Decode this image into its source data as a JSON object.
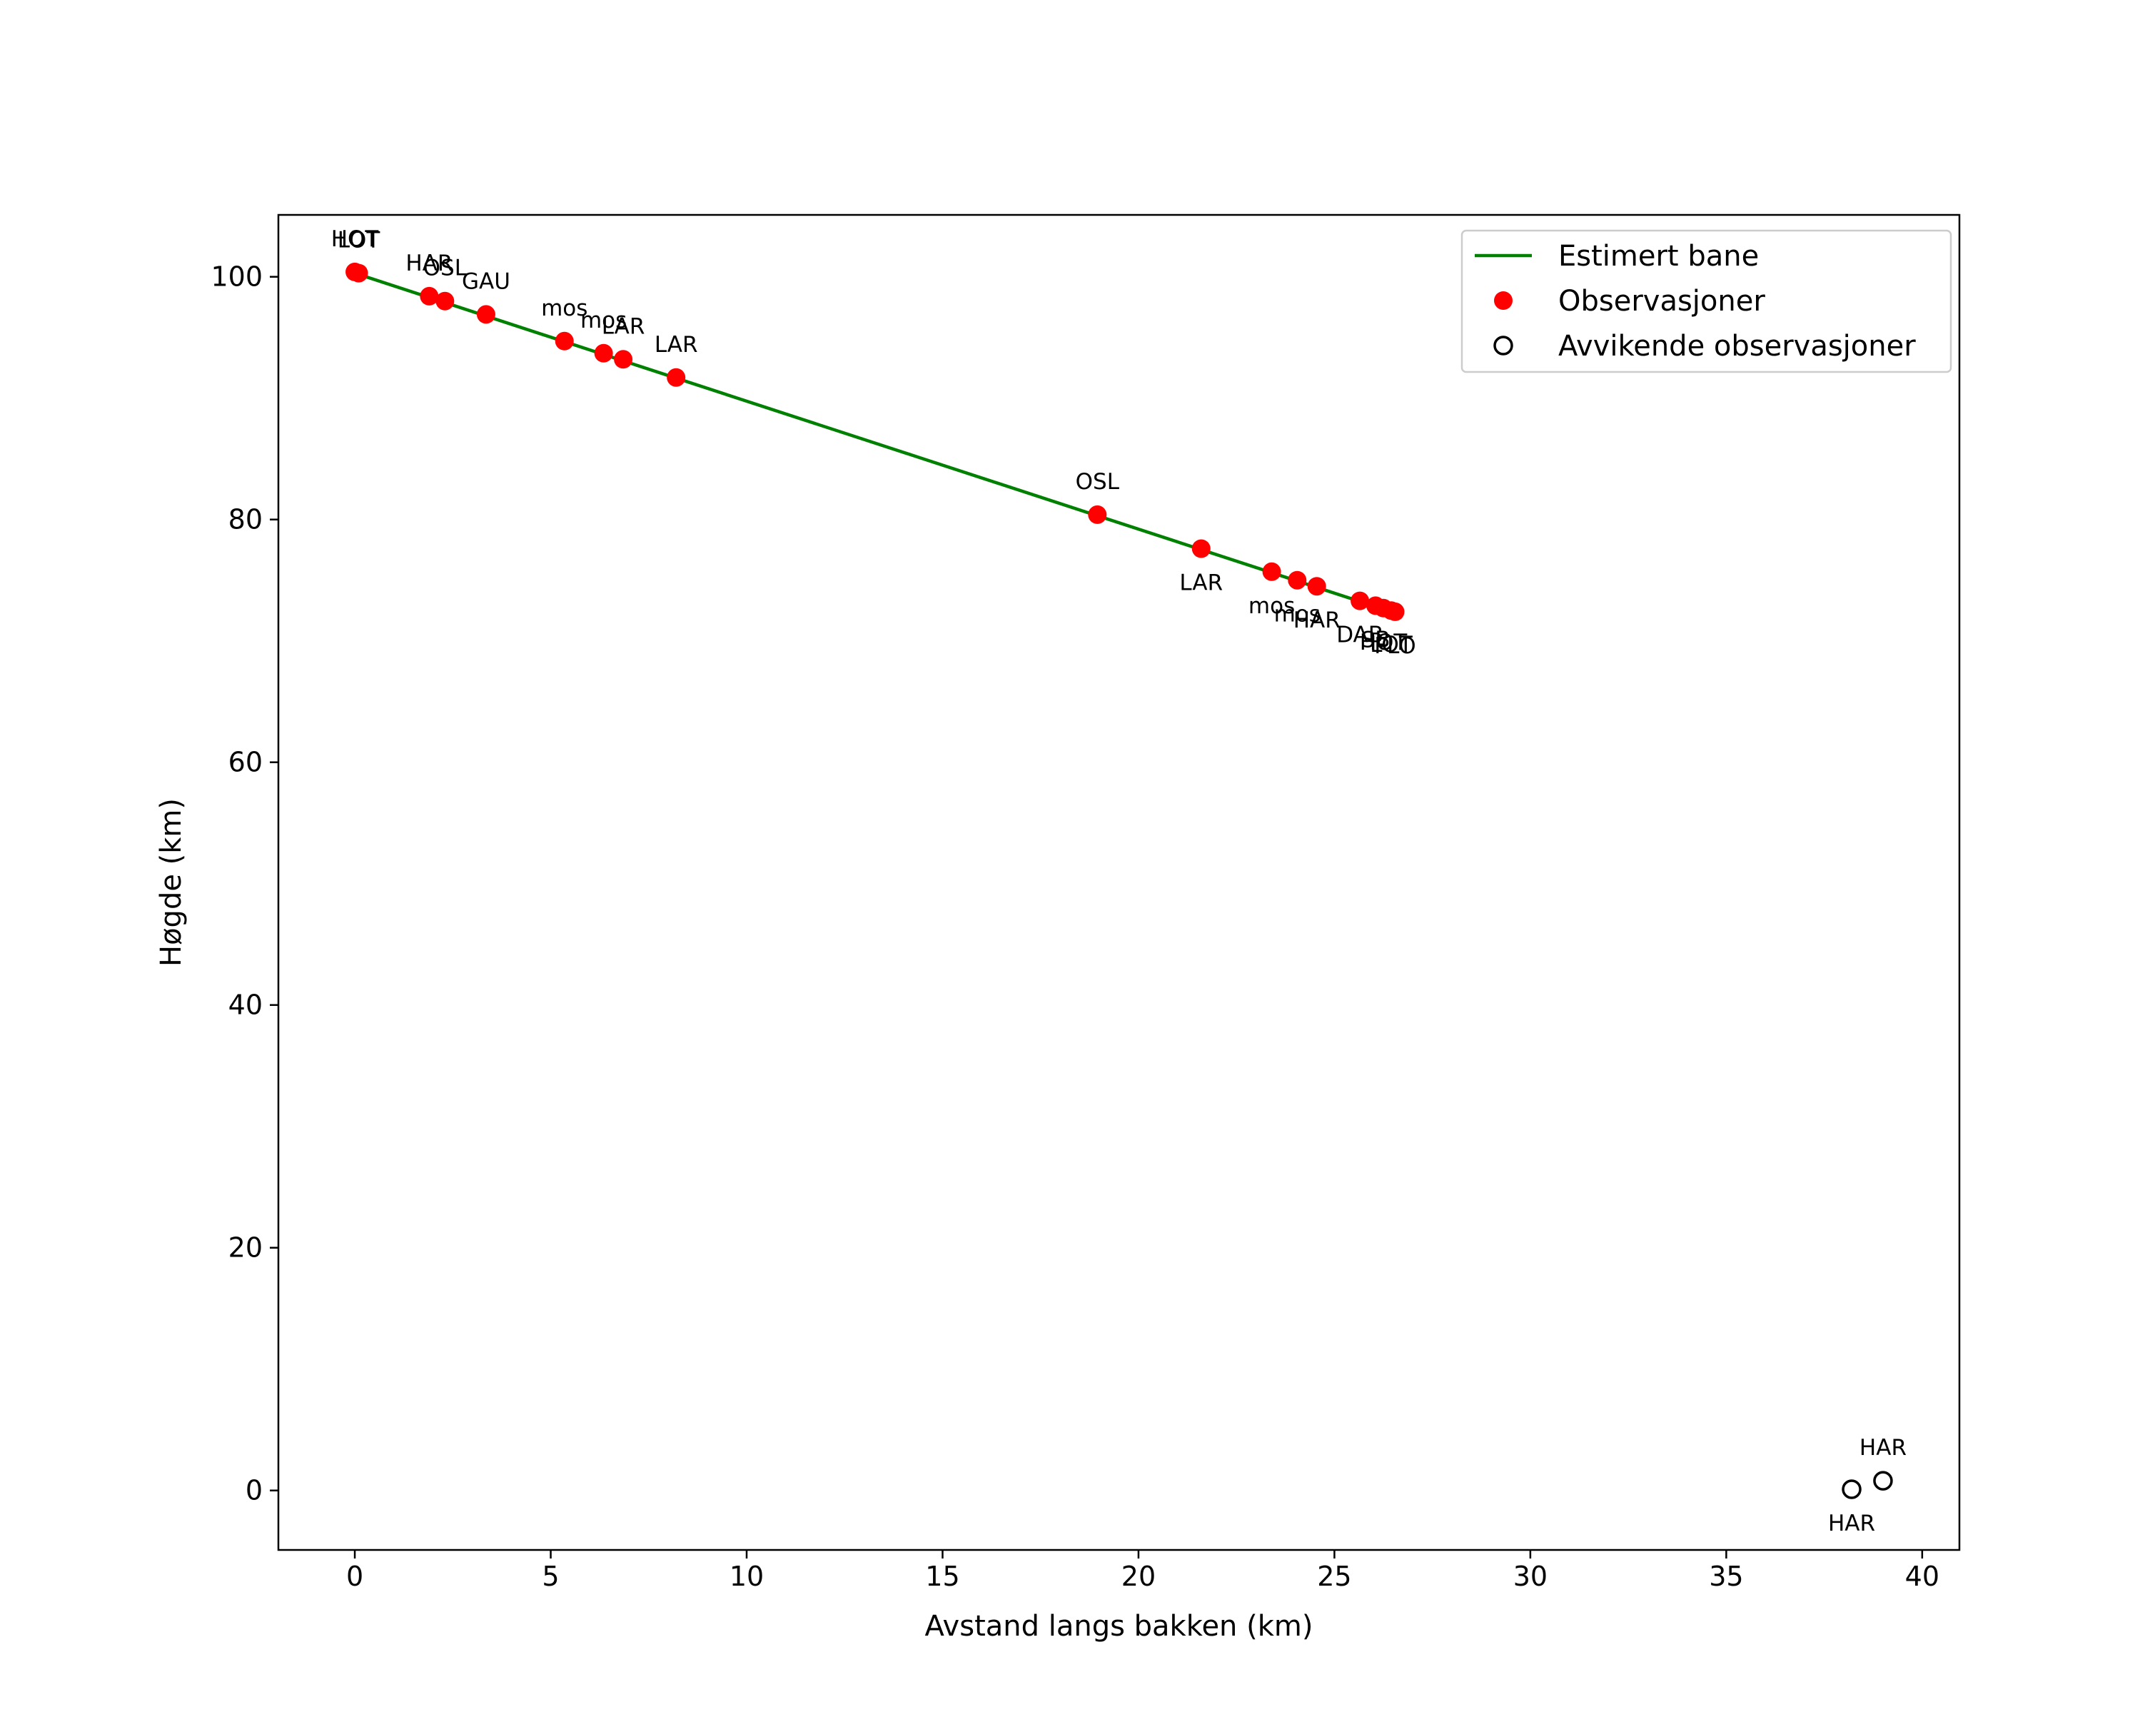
{
  "chart_data": {
    "type": "scatter",
    "title": "",
    "xlabel": "Avstand langs bakken (km)",
    "ylabel": "Høgde (km)",
    "xlim": [
      -1.95,
      40.95
    ],
    "ylim": [
      -4.9,
      105.1
    ],
    "xticks": [
      0,
      5,
      10,
      15,
      20,
      25,
      30,
      35,
      40
    ],
    "yticks": [
      0,
      20,
      40,
      60,
      80,
      100
    ],
    "grid": false,
    "legend_position": "top-right",
    "legend": [
      {
        "label": "Estimert bane",
        "kind": "line"
      },
      {
        "label": "Observasjoner",
        "kind": "filled-marker"
      },
      {
        "label": "Avvikende observasjoner",
        "kind": "open-marker"
      }
    ],
    "colors": {
      "line": "#008000",
      "observation": "#ff0000",
      "outlier": "#000000"
    },
    "series": [
      {
        "name": "Estimert bane",
        "kind": "line",
        "points": [
          [
            0.0,
            100.3
          ],
          [
            26.55,
            72.3
          ]
        ]
      },
      {
        "name": "Observasjoner",
        "kind": "filled-marker",
        "points": [
          {
            "x": 0.0,
            "y": 100.4,
            "label": "HOT",
            "label_pos": "above"
          },
          {
            "x": 0.1,
            "y": 100.3,
            "label": "LOT",
            "label_pos": "above"
          },
          {
            "x": 1.9,
            "y": 98.4,
            "label": "HAR",
            "label_pos": "above"
          },
          {
            "x": 2.3,
            "y": 98.0,
            "label": "OSL",
            "label_pos": "above"
          },
          {
            "x": 3.35,
            "y": 96.9,
            "label": "GAU",
            "label_pos": "above"
          },
          {
            "x": 5.35,
            "y": 94.7,
            "label": "mos",
            "label_pos": "above"
          },
          {
            "x": 6.35,
            "y": 93.7,
            "label": "mos",
            "label_pos": "above"
          },
          {
            "x": 6.85,
            "y": 93.2,
            "label": "LAR",
            "label_pos": "above"
          },
          {
            "x": 8.2,
            "y": 91.7,
            "label": "LAR",
            "label_pos": "above"
          },
          {
            "x": 18.95,
            "y": 80.4,
            "label": "OSL",
            "label_pos": "above"
          },
          {
            "x": 21.6,
            "y": 77.6,
            "label": "LAR",
            "label_pos": "below"
          },
          {
            "x": 23.4,
            "y": 75.7,
            "label": "mos",
            "label_pos": "below"
          },
          {
            "x": 24.05,
            "y": 75.0,
            "label": "mos",
            "label_pos": "below"
          },
          {
            "x": 24.55,
            "y": 74.5,
            "label": "HAR",
            "label_pos": "below"
          },
          {
            "x": 25.65,
            "y": 73.3,
            "label": "DAB",
            "label_pos": "below"
          },
          {
            "x": 26.05,
            "y": 72.9,
            "label": "SB",
            "label_pos": "below"
          },
          {
            "x": 26.25,
            "y": 72.7,
            "label": "HOT",
            "label_pos": "below"
          },
          {
            "x": 26.45,
            "y": 72.5,
            "label": "LOT",
            "label_pos": "below"
          },
          {
            "x": 26.55,
            "y": 72.4,
            "label": "FLO",
            "label_pos": "below"
          }
        ]
      },
      {
        "name": "Avvikende observasjoner",
        "kind": "open-marker",
        "points": [
          {
            "x": 38.2,
            "y": 0.1,
            "label": "HAR",
            "label_pos": "below"
          },
          {
            "x": 39.0,
            "y": 0.8,
            "label": "HAR",
            "label_pos": "above"
          }
        ]
      }
    ]
  }
}
